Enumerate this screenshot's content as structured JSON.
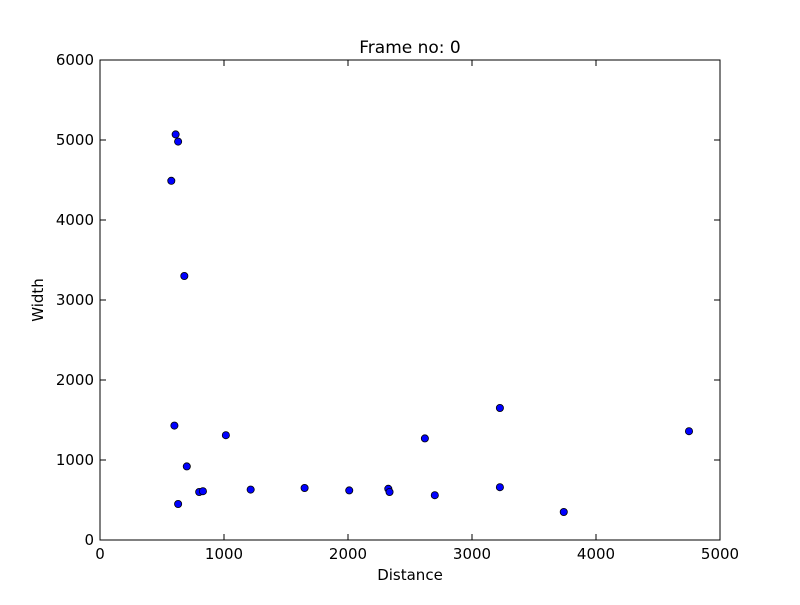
{
  "chart_data": {
    "type": "scatter",
    "title": "Frame no: 0",
    "xlabel": "Distance",
    "ylabel": "Width",
    "xlim": [
      0,
      5000
    ],
    "ylim": [
      0,
      6000
    ],
    "xticks": [
      0,
      1000,
      2000,
      3000,
      4000,
      5000
    ],
    "yticks": [
      0,
      1000,
      2000,
      3000,
      4000,
      5000,
      6000
    ],
    "grid": false,
    "marker_color": "#0000ff",
    "points": [
      {
        "x": 610,
        "y": 5070
      },
      {
        "x": 630,
        "y": 4980
      },
      {
        "x": 575,
        "y": 4490
      },
      {
        "x": 680,
        "y": 3300
      },
      {
        "x": 600,
        "y": 1430
      },
      {
        "x": 700,
        "y": 920
      },
      {
        "x": 630,
        "y": 450
      },
      {
        "x": 800,
        "y": 600
      },
      {
        "x": 830,
        "y": 610
      },
      {
        "x": 1015,
        "y": 1310
      },
      {
        "x": 1215,
        "y": 630
      },
      {
        "x": 1650,
        "y": 650
      },
      {
        "x": 2010,
        "y": 620
      },
      {
        "x": 2325,
        "y": 640
      },
      {
        "x": 2335,
        "y": 600
      },
      {
        "x": 2620,
        "y": 1270
      },
      {
        "x": 2700,
        "y": 560
      },
      {
        "x": 3225,
        "y": 1650
      },
      {
        "x": 3225,
        "y": 660
      },
      {
        "x": 3740,
        "y": 350
      },
      {
        "x": 4750,
        "y": 1360
      }
    ]
  }
}
